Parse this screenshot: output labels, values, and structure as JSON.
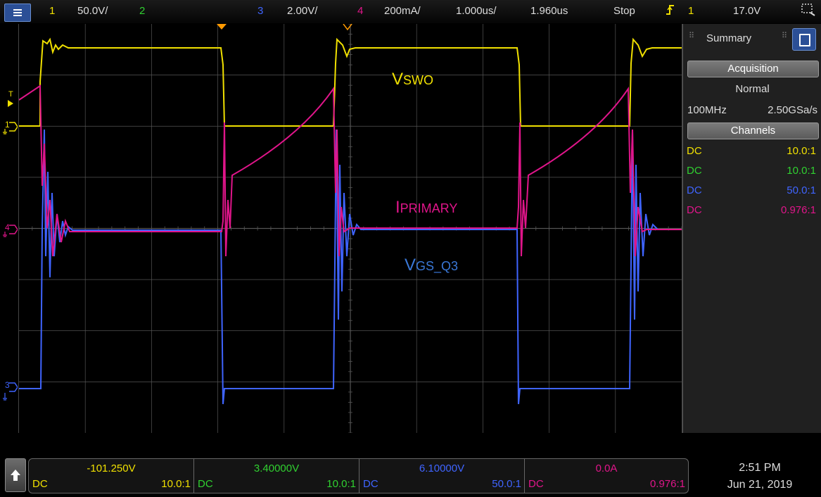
{
  "colors": {
    "ch1": "#f0e000",
    "ch2": "#30d030",
    "ch3": "#3f64ff",
    "ch4": "#e0158a",
    "grid": "#555555",
    "panel": "#202020"
  },
  "top_bar": {
    "menu_icon": "menu-icon",
    "ch1_num": "1",
    "ch1_scale": "50.0V/",
    "ch2_num": "2",
    "ch3_num": "3",
    "ch3_scale": "2.00V/",
    "ch4_num": "4",
    "ch4_scale": "200mA/",
    "timebase": "1.000us/",
    "delay": "1.960us",
    "run_state": "Stop",
    "trigger_icon": "trigger-edge-icon",
    "trigger_source": "1",
    "trigger_level": "17.0V",
    "zoom_icon": "zoom-box-icon"
  },
  "waveform": {
    "annotations": {
      "vswo_main": "V",
      "vswo_sub": "SWO",
      "ipri_main": "I",
      "ipri_sub": "PRIMARY",
      "vgs_main": "V",
      "vgs_sub": "GS_Q3"
    },
    "markers": {
      "trigger": "T",
      "ch1": "1",
      "ch4": "4",
      "ch3": "3"
    }
  },
  "summary_panel": {
    "title": "Summary",
    "acquisition_header": "Acquisition",
    "acq_mode": "Normal",
    "bandwidth": "100MHz",
    "sample_rate": "2.50GSa/s",
    "channels_header": "Channels",
    "channels": [
      {
        "coupling": "DC",
        "probe": "10.0:1"
      },
      {
        "coupling": "DC",
        "probe": "10.0:1"
      },
      {
        "coupling": "DC",
        "probe": "50.0:1"
      },
      {
        "coupling": "DC",
        "probe": "0.976:1"
      }
    ]
  },
  "bottom_bar": {
    "channels": [
      {
        "value": "-101.250V",
        "coupling": "DC",
        "probe": "10.0:1"
      },
      {
        "value": "3.40000V",
        "coupling": "DC",
        "probe": "10.0:1"
      },
      {
        "value": "6.10000V",
        "coupling": "DC",
        "probe": "50.0:1"
      },
      {
        "value": "0.0A",
        "coupling": "DC",
        "probe": "0.976:1"
      }
    ],
    "time": "2:51 PM",
    "date": "Jun 21, 2019"
  }
}
